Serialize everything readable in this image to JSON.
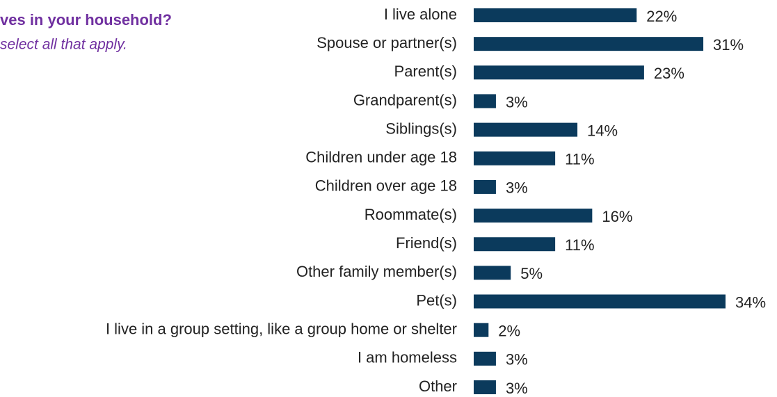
{
  "chart_data": {
    "type": "bar",
    "orientation": "horizontal",
    "title": "ves in your household?",
    "subtitle": "select all that apply.",
    "categories": [
      "I live alone",
      "Spouse or partner(s)",
      "Parent(s)",
      "Grandparent(s)",
      "Siblings(s)",
      "Children under age 18",
      "Children over age 18",
      "Roommate(s)",
      "Friend(s)",
      "Other family member(s)",
      "Pet(s)",
      "I live in a group setting, like a group home or shelter",
      "I am homeless",
      "Other"
    ],
    "values": [
      22,
      31,
      23,
      3,
      14,
      11,
      3,
      16,
      11,
      5,
      34,
      2,
      3,
      3
    ],
    "value_labels": [
      "22%",
      "31%",
      "23%",
      "3%",
      "14%",
      "11%",
      "3%",
      "16%",
      "11%",
      "5%",
      "34%",
      "2%",
      "3%",
      "3%"
    ],
    "color": "#0b3a5c"
  }
}
